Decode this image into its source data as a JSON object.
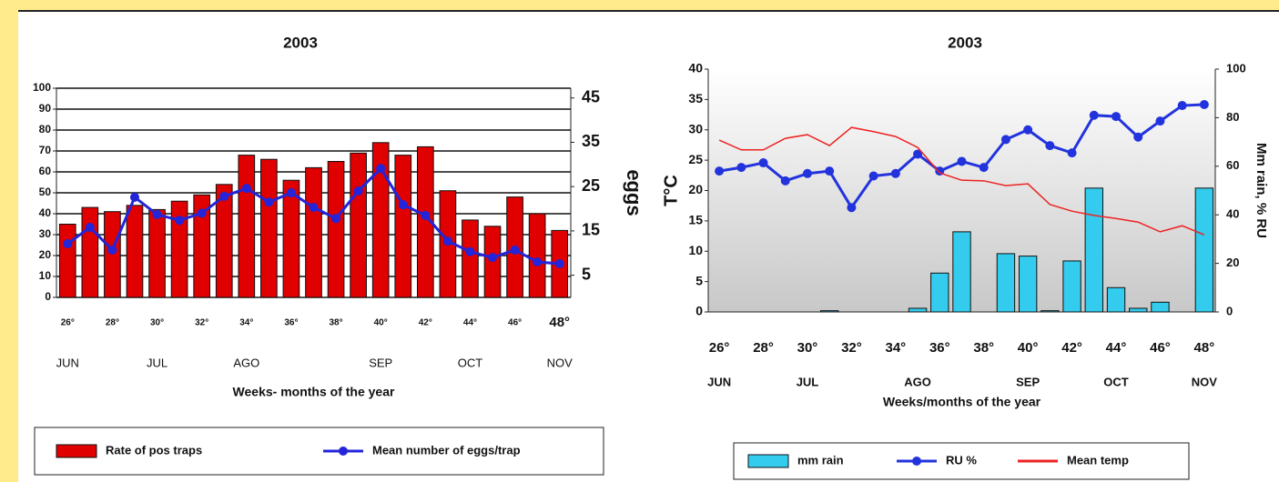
{
  "chart_data": [
    {
      "type": "bar",
      "title": "2003",
      "xlabel": "Weeks- months of the year",
      "y2label": "eggs",
      "categories": [
        "26°",
        null,
        "28°",
        null,
        "30°",
        null,
        "32°",
        null,
        "34°",
        null,
        "36°",
        null,
        "38°",
        null,
        "40°",
        null,
        "42°",
        null,
        "44°",
        null,
        "46°",
        null,
        "48°"
      ],
      "months": [
        "JUN",
        null,
        null,
        null,
        "JUL",
        null,
        null,
        null,
        "AGO",
        null,
        null,
        null,
        null,
        null,
        "SEP",
        null,
        null,
        null,
        "OCT",
        null,
        null,
        null,
        "NOV"
      ],
      "series": [
        {
          "name": "Rate of pos traps",
          "type": "bar",
          "color": "#e00000",
          "values": [
            35,
            43,
            41,
            44,
            42,
            46,
            49,
            54,
            68,
            66,
            56,
            62,
            65,
            69,
            74,
            68,
            72,
            51,
            37,
            34,
            48,
            40,
            32
          ]
        },
        {
          "name": "Mean number of eggs/trap",
          "type": "line",
          "axis": "y2",
          "marker": true,
          "color": "#2424d8",
          "values": [
            12.1,
            15.8,
            10.7,
            22.6,
            18.7,
            17.4,
            19,
            22.8,
            24.6,
            21.5,
            23.6,
            20.3,
            17.8,
            24,
            29.1,
            20.9,
            18.5,
            12.7,
            10.3,
            9,
            10.7,
            8,
            7.6
          ]
        }
      ],
      "ylim": [
        0,
        100
      ],
      "yticks": [
        0,
        10,
        20,
        30,
        40,
        50,
        60,
        70,
        80,
        90,
        100
      ],
      "ytick_color": "#e00000",
      "y2lim": [
        0,
        47.2
      ],
      "y2ticks": [
        5,
        15,
        25,
        35,
        45
      ],
      "y2tick_color": "#2424c8",
      "grid": true,
      "legend": "bottom"
    },
    {
      "type": "bar",
      "title": "2003",
      "xlabel": "Weeks/months of the year",
      "ylabel": "T°C",
      "y2label": "Mm rain, % RU",
      "categories": [
        "26°",
        null,
        "28°",
        null,
        "30°",
        null,
        "32°",
        null,
        "34°",
        null,
        "36°",
        null,
        "38°",
        null,
        "40°",
        null,
        "42°",
        null,
        "44°",
        null,
        "46°",
        null,
        "48°"
      ],
      "months": [
        "JUN",
        null,
        null,
        null,
        "JUL",
        null,
        null,
        null,
        null,
        "AGO",
        null,
        null,
        null,
        null,
        "SEP",
        null,
        null,
        null,
        "OCT",
        null,
        null,
        null,
        "NOV"
      ],
      "series": [
        {
          "name": "mm rain",
          "type": "bar",
          "axis": "y2",
          "color": "#33ccee",
          "values": [
            0,
            0,
            0,
            0,
            0,
            0.5,
            0,
            0,
            0,
            1.5,
            16,
            33,
            0,
            24,
            23,
            0.5,
            21,
            51,
            10,
            1.5,
            4,
            0,
            51
          ]
        },
        {
          "name": "RU %",
          "type": "line",
          "axis": "y2",
          "marker": true,
          "color": "#2233dd",
          "values": [
            58,
            59.5,
            61.4,
            54,
            57,
            58,
            43,
            56,
            57,
            65,
            58,
            62,
            59.5,
            71,
            75,
            68.5,
            65.5,
            81,
            80.5,
            72,
            78.6,
            85,
            85.4
          ]
        },
        {
          "name": "Mean temp",
          "type": "line",
          "marker": false,
          "color": "#ee2222",
          "values": [
            28.3,
            26.7,
            26.7,
            28.6,
            29.2,
            27.4,
            30.4,
            29.7,
            28.9,
            27.1,
            22.9,
            21.7,
            21.6,
            20.8,
            21.1,
            17.7,
            16.6,
            15.9,
            15.4,
            14.8,
            13.2,
            14.2,
            12.7
          ]
        }
      ],
      "ylim": [
        0,
        40
      ],
      "yticks": [
        0,
        5,
        10,
        15,
        20,
        25,
        30,
        35,
        40
      ],
      "ytick_color": "#111111",
      "y2lim": [
        0,
        100
      ],
      "y2ticks": [
        0,
        20,
        40,
        60,
        80,
        100
      ],
      "y2tick_color": "#111111",
      "grid": false,
      "legend": "bottom"
    }
  ]
}
